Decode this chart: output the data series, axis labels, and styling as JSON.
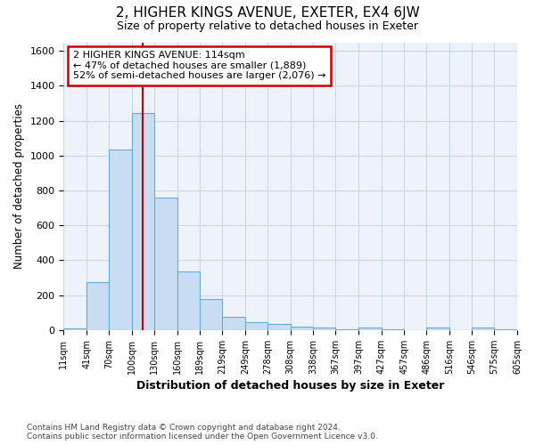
{
  "title_main": "2, HIGHER KINGS AVENUE, EXETER, EX4 6JW",
  "title_sub": "Size of property relative to detached houses in Exeter",
  "xlabel": "Distribution of detached houses by size in Exeter",
  "ylabel": "Number of detached properties",
  "bin_edges": [
    11,
    41,
    70,
    100,
    130,
    160,
    189,
    219,
    249,
    278,
    308,
    338,
    367,
    397,
    427,
    457,
    486,
    516,
    546,
    575,
    605
  ],
  "bar_heights": [
    10,
    275,
    1035,
    1245,
    760,
    335,
    180,
    75,
    45,
    35,
    20,
    15,
    5,
    15,
    5,
    0,
    15,
    0,
    15,
    5
  ],
  "bar_color": "#c8ddf2",
  "bar_edge_color": "#6aaad4",
  "vline_x": 114,
  "vline_color": "#cc0000",
  "annotation_line1": "2 HIGHER KINGS AVENUE: 114sqm",
  "annotation_line2": "← 47% of detached houses are smaller (1,889)",
  "annotation_line3": "52% of semi-detached houses are larger (2,076) →",
  "annotation_box_color": "#cc0000",
  "ylim": [
    0,
    1650
  ],
  "yticks": [
    0,
    200,
    400,
    600,
    800,
    1000,
    1200,
    1400,
    1600
  ],
  "grid_color": "#c8d8e8",
  "bg_color": "#eef3fa",
  "footer_text": "Contains HM Land Registry data © Crown copyright and database right 2024.\nContains public sector information licensed under the Open Government Licence v3.0.",
  "tick_labels": [
    "11sqm",
    "41sqm",
    "70sqm",
    "100sqm",
    "130sqm",
    "160sqm",
    "189sqm",
    "219sqm",
    "249sqm",
    "278sqm",
    "308sqm",
    "338sqm",
    "367sqm",
    "397sqm",
    "427sqm",
    "457sqm",
    "486sqm",
    "516sqm",
    "546sqm",
    "575sqm",
    "605sqm"
  ]
}
